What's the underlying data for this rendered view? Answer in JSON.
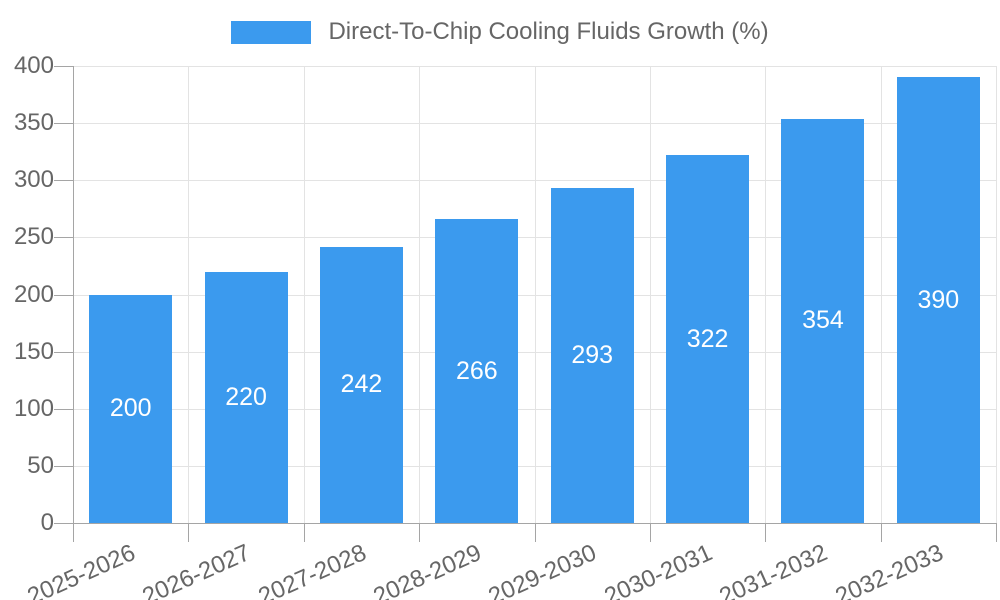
{
  "legend": {
    "label": "Direct-To-Chip Cooling Fluids Growth (%)"
  },
  "chart_data": {
    "type": "bar",
    "categories": [
      "2025-2026",
      "2026-2027",
      "2027-2028",
      "2028-2029",
      "2029-2030",
      "2030-2031",
      "2031-2032",
      "2032-2033"
    ],
    "series": [
      {
        "name": "Direct-To-Chip Cooling Fluids Growth (%)",
        "values": [
          200,
          220,
          242,
          266,
          293,
          322,
          354,
          390
        ]
      }
    ],
    "xlabel": "",
    "ylabel": "",
    "ylim": [
      0,
      400
    ],
    "yticks": [
      0,
      50,
      100,
      150,
      200,
      250,
      300,
      350,
      400
    ],
    "grid": true,
    "legend_position": "top",
    "x_tick_rotation_deg": 24,
    "bar_value_labels_position": "center",
    "colors": {
      "bar": "#3b9aee",
      "bar_label": "#ffffff",
      "axis": "#a5a5a5",
      "grid": "#e3e3e3",
      "tick_text": "#666666",
      "legend_text": "#666666",
      "background": "#ffffff"
    }
  }
}
